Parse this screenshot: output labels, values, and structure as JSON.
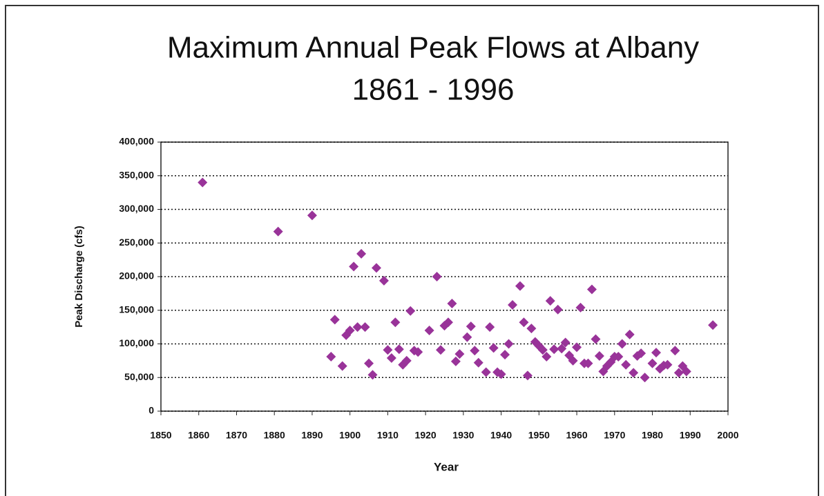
{
  "chart_data": {
    "type": "scatter",
    "title": "Maximum Annual Peak Flows at Albany",
    "subtitle": "1861 - 1996",
    "x_label": "Year",
    "y_label": "Peak Discharge (cfs)",
    "color": "#993399",
    "grid": true,
    "x": [
      1861,
      1881,
      1890,
      1895,
      1896,
      1898,
      1899,
      1900,
      1901,
      1902,
      1903,
      1904,
      1905,
      1906,
      1907,
      1909,
      1910,
      1911,
      1912,
      1913,
      1914,
      1915,
      1916,
      1917,
      1918,
      1921,
      1923,
      1924,
      1925,
      1926,
      1927,
      1928,
      1929,
      1931,
      1932,
      1933,
      1934,
      1936,
      1937,
      1938,
      1939,
      1940,
      1941,
      1942,
      1943,
      1945,
      1946,
      1947,
      1948,
      1949,
      1950,
      1951,
      1952,
      1953,
      1954,
      1955,
      1956,
      1957,
      1958,
      1959,
      1960,
      1961,
      1962,
      1963,
      1964,
      1965,
      1966,
      1967,
      1968,
      1969,
      1970,
      1971,
      1972,
      1973,
      1974,
      1975,
      1976,
      1977,
      1978,
      1980,
      1981,
      1982,
      1983,
      1984,
      1986,
      1987,
      1988,
      1989,
      1996
    ],
    "values": [
      340000,
      267000,
      291000,
      81000,
      136000,
      67000,
      113000,
      120000,
      215000,
      125000,
      234000,
      125000,
      71000,
      54000,
      213000,
      194000,
      91000,
      79000,
      132000,
      92000,
      69000,
      75000,
      149000,
      90000,
      88000,
      120000,
      200000,
      91000,
      127000,
      132000,
      160000,
      74000,
      85000,
      110000,
      126000,
      90000,
      72000,
      58000,
      125000,
      94000,
      58000,
      55000,
      84000,
      100000,
      158000,
      186000,
      132000,
      53000,
      123000,
      103000,
      97000,
      91000,
      81000,
      164000,
      92000,
      151000,
      93000,
      102000,
      83000,
      75000,
      95000,
      154000,
      71000,
      71000,
      181000,
      107000,
      82000,
      59000,
      67000,
      73000,
      81000,
      81000,
      100000,
      69000,
      114000,
      57000,
      82000,
      86000,
      50000,
      71000,
      87000,
      63000,
      68000,
      69000,
      90000,
      57000,
      67000,
      59000,
      128000
    ],
    "xlim": [
      1850,
      2000
    ],
    "xticks": [
      1850,
      1860,
      1870,
      1880,
      1890,
      1900,
      1910,
      1920,
      1930,
      1940,
      1950,
      1960,
      1970,
      1980,
      1990,
      2000
    ],
    "ylim": [
      0,
      400000
    ],
    "yticks": [
      0,
      {
        "value": 50000,
        "label": "50,000"
      },
      {
        "value": 100000,
        "label": "100,000"
      },
      {
        "value": 150000,
        "label": "150,000"
      },
      {
        "value": 200000,
        "label": "200,000"
      },
      {
        "value": 250000,
        "label": "250,000"
      },
      {
        "value": 300000,
        "label": "300,000"
      },
      {
        "value": 350000,
        "label": "350,000"
      },
      {
        "value": 400000,
        "label": "400,000"
      }
    ]
  }
}
